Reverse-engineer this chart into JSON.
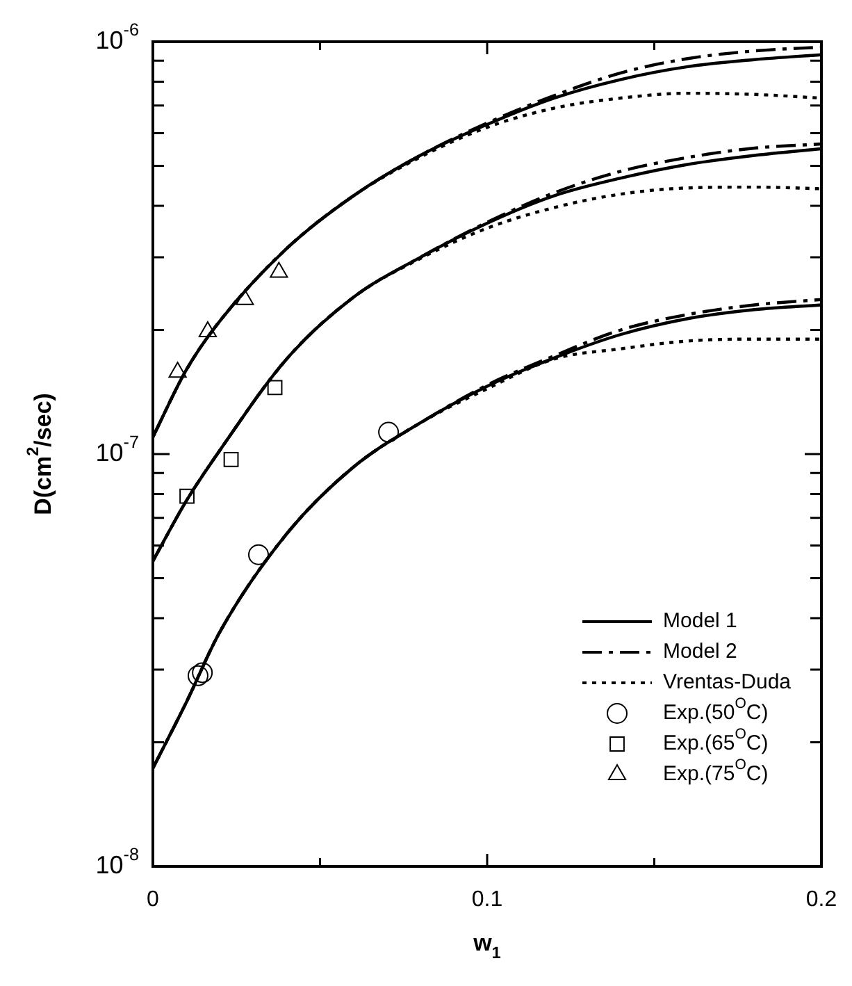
{
  "chart_data": {
    "type": "line",
    "xlabel": "w$_{1}$",
    "ylabel": "D(cm$^{2}$/sec)",
    "log": "y",
    "grid": false,
    "legend": "bottom right",
    "xlim": [
      0,
      0.2
    ],
    "ylim": [
      1e-08,
      1e-06
    ],
    "xticks": [
      0,
      {
        "value": 0.05,
        "label": null
      },
      0.1,
      {
        "value": 0.15,
        "label": null
      },
      0.2
    ],
    "yticks": [
      {
        "value": 1e-08,
        "label": "10$^{-8}$"
      },
      {
        "value": 2e-08,
        "label": null
      },
      {
        "value": 3e-08,
        "label": null
      },
      {
        "value": 4e-08,
        "label": null
      },
      {
        "value": 5e-08,
        "label": null
      },
      {
        "value": 6e-08,
        "label": null
      },
      {
        "value": 7e-08,
        "label": null
      },
      {
        "value": 8e-08,
        "label": null
      },
      {
        "value": 9e-08,
        "label": null
      },
      {
        "value": 1e-07,
        "label": "10$^{-7}$"
      },
      {
        "value": 2e-07,
        "label": null
      },
      {
        "value": 3e-07,
        "label": null
      },
      {
        "value": 4e-07,
        "label": null
      },
      {
        "value": 5e-07,
        "label": null
      },
      {
        "value": 6e-07,
        "label": null
      },
      {
        "value": 7e-07,
        "label": null
      },
      {
        "value": 8e-07,
        "label": null
      },
      {
        "value": 9e-07,
        "label": null
      },
      {
        "value": 1e-06,
        "label": "10$^{-6}$"
      }
    ],
    "series": [
      {
        "name": "Model 1",
        "type": "line",
        "color": "#000000",
        "line_style": "solid",
        "marker": "none",
        "x": [
          0,
          0.01,
          0.02,
          0.04,
          0.06,
          0.08,
          0.1,
          0.12,
          0.14,
          0.16,
          0.18,
          0.2
        ],
        "values": [
          1.1e-07,
          1.6e-07,
          2.1e-07,
          3.15e-07,
          4.23e-07,
          5.3e-07,
          6.3e-07,
          7.3e-07,
          8.1e-07,
          8.7e-07,
          9.05e-07,
          9.3e-07
        ]
      },
      {
        "name": "Model 2",
        "type": "line",
        "color": "#000000",
        "line_style": "dashed",
        "marker": "none",
        "x": [
          0,
          0.01,
          0.02,
          0.04,
          0.06,
          0.08,
          0.1,
          0.12,
          0.14,
          0.16,
          0.18,
          0.2
        ],
        "values": [
          1.1e-07,
          1.6e-07,
          2.1e-07,
          3.15e-07,
          4.23e-07,
          5.3e-07,
          6.35e-07,
          7.4e-07,
          8.4e-07,
          9.1e-07,
          9.5e-07,
          9.7e-07
        ]
      },
      {
        "name": "Vrentas-Duda",
        "type": "line",
        "color": "#000000",
        "line_style": "dotted",
        "marker": "none",
        "x": [
          0,
          0.01,
          0.02,
          0.04,
          0.06,
          0.08,
          0.1,
          0.12,
          0.14,
          0.16,
          0.18,
          0.2
        ],
        "values": [
          1.1e-07,
          1.6e-07,
          2.1e-07,
          3.15e-07,
          4.23e-07,
          5.25e-07,
          6.2e-07,
          6.9e-07,
          7.3e-07,
          7.5e-07,
          7.45e-07,
          7.3e-07
        ]
      },
      {
        "type": "line",
        "color": "#000000",
        "line_style": "solid",
        "marker": "none",
        "x": [
          0,
          0.01,
          0.02,
          0.04,
          0.06,
          0.08,
          0.1,
          0.12,
          0.14,
          0.16,
          0.18,
          0.2
        ],
        "values": [
          5.5e-08,
          7.7e-08,
          1.02e-07,
          1.7e-07,
          2.4e-07,
          3e-07,
          3.63e-07,
          4.23e-07,
          4.67e-07,
          5.04e-07,
          5.3e-07,
          5.5e-07
        ]
      },
      {
        "type": "line",
        "color": "#000000",
        "line_style": "dashed",
        "marker": "none",
        "x": [
          0,
          0.01,
          0.02,
          0.04,
          0.06,
          0.08,
          0.1,
          0.12,
          0.14,
          0.16,
          0.18,
          0.2
        ],
        "values": [
          5.5e-08,
          7.7e-08,
          1.02e-07,
          1.7e-07,
          2.4e-07,
          3e-07,
          3.65e-07,
          4.3e-07,
          4.85e-07,
          5.24e-07,
          5.52e-07,
          5.65e-07
        ]
      },
      {
        "type": "line",
        "color": "#000000",
        "line_style": "dotted",
        "marker": "none",
        "x": [
          0,
          0.01,
          0.02,
          0.04,
          0.06,
          0.08,
          0.1,
          0.12,
          0.14,
          0.16,
          0.18,
          0.2
        ],
        "values": [
          5.5e-08,
          7.7e-08,
          1.02e-07,
          1.7e-07,
          2.4e-07,
          2.98e-07,
          3.53e-07,
          3.96e-07,
          4.27e-07,
          4.42e-07,
          4.44e-07,
          4.4e-07
        ]
      },
      {
        "type": "line",
        "color": "#000000",
        "line_style": "solid",
        "marker": "none",
        "x": [
          0,
          0.01,
          0.02,
          0.04,
          0.06,
          0.08,
          0.1,
          0.12,
          0.14,
          0.16,
          0.18,
          0.2
        ],
        "values": [
          1.73e-08,
          2.5e-08,
          3.7e-08,
          6.4e-08,
          9.3e-08,
          1.19e-07,
          1.46e-07,
          1.71e-07,
          1.95e-07,
          2.13e-07,
          2.24e-07,
          2.3e-07
        ]
      },
      {
        "type": "line",
        "color": "#000000",
        "line_style": "dashed",
        "marker": "none",
        "x": [
          0,
          0.01,
          0.02,
          0.04,
          0.06,
          0.08,
          0.1,
          0.12,
          0.14,
          0.16,
          0.18,
          0.2
        ],
        "values": [
          1.73e-08,
          2.5e-08,
          3.7e-08,
          6.4e-08,
          9.3e-08,
          1.19e-07,
          1.47e-07,
          1.73e-07,
          2e-07,
          2.18e-07,
          2.3e-07,
          2.37e-07
        ]
      },
      {
        "type": "line",
        "color": "#000000",
        "line_style": "dotted",
        "marker": "none",
        "x": [
          0,
          0.01,
          0.02,
          0.04,
          0.06,
          0.08,
          0.1,
          0.12,
          0.14,
          0.16,
          0.18,
          0.2
        ],
        "values": [
          1.73e-08,
          2.5e-08,
          3.7e-08,
          6.4e-08,
          9.3e-08,
          1.19e-07,
          1.44e-07,
          1.7e-07,
          1.8e-07,
          1.88e-07,
          1.9e-07,
          1.9e-07
        ]
      },
      {
        "name": "Exp.(50$^{O}$C)",
        "type": "scatter",
        "color": "#000000",
        "marker": "circle",
        "x": [
          0.0135,
          0.0148,
          0.0316,
          0.0705
        ],
        "values": [
          2.9e-08,
          2.95e-08,
          5.7e-08,
          1.13e-07
        ]
      },
      {
        "name": "Exp.(65$^{O}$C)",
        "type": "scatter",
        "color": "#000000",
        "marker": "square",
        "x": [
          0.0102,
          0.0234,
          0.0365
        ],
        "values": [
          7.9e-08,
          9.7e-08,
          1.45e-07
        ]
      },
      {
        "name": "Exp.(75$^{O}$C)",
        "type": "scatter",
        "color": "#000000",
        "marker": "triangle",
        "x": [
          0.0074,
          0.0164,
          0.0275,
          0.0377
        ],
        "values": [
          1.58e-07,
          1.98e-07,
          2.37e-07,
          2.76e-07
        ]
      }
    ]
  }
}
